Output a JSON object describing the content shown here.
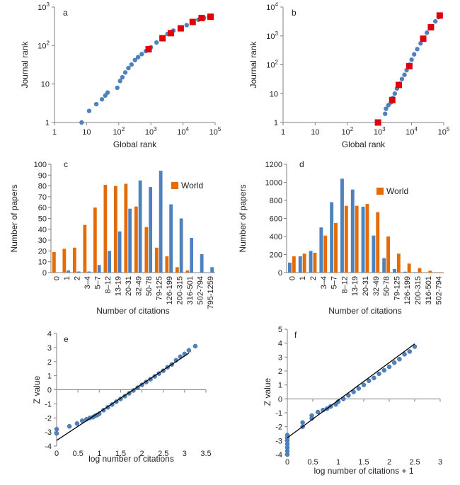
{
  "colors": {
    "blue": "#4f81bd",
    "orange": "#e36c09",
    "red": "#e0000c",
    "axis": "#808080",
    "fit_line": "#000000"
  },
  "chart_data": [
    {
      "panel": "a",
      "type": "scatter",
      "xlabel": "Global rank",
      "ylabel": "Journal rank",
      "x_scale": "log",
      "y_scale": "log",
      "xlim": [
        1,
        100000
      ],
      "ylim": [
        1,
        1000
      ],
      "x_ticks": [
        {
          "v": 1,
          "b": "1",
          "e": ""
        },
        {
          "v": 10,
          "b": "10",
          "e": ""
        },
        {
          "v": 100,
          "b": "10",
          "e": "2"
        },
        {
          "v": 1000,
          "b": "10",
          "e": "3"
        },
        {
          "v": 10000,
          "b": "10",
          "e": "4"
        },
        {
          "v": 100000,
          "b": "10",
          "e": "5"
        }
      ],
      "y_ticks": [
        {
          "v": 1,
          "b": "1",
          "e": ""
        },
        {
          "v": 10,
          "b": "10",
          "e": ""
        },
        {
          "v": 100,
          "b": "10",
          "e": "2"
        },
        {
          "v": 1000,
          "b": "10",
          "e": "3"
        }
      ],
      "series": [
        {
          "marker": "circle",
          "color": "#4f81bd",
          "points": [
            [
              7,
              1
            ],
            [
              12,
              2
            ],
            [
              20,
              3
            ],
            [
              30,
              4
            ],
            [
              38,
              5
            ],
            [
              45,
              6
            ],
            [
              90,
              8
            ],
            [
              110,
              12
            ],
            [
              130,
              15
            ],
            [
              160,
              20
            ],
            [
              200,
              26
            ],
            [
              250,
              32
            ],
            [
              320,
              42
            ],
            [
              400,
              50
            ],
            [
              520,
              60
            ],
            [
              700,
              72
            ],
            [
              1000,
              90
            ],
            [
              1500,
              120
            ],
            [
              2200,
              155
            ],
            [
              3300,
              200
            ],
            [
              5000,
              245
            ],
            [
              8000,
              290
            ],
            [
              13000,
              340
            ],
            [
              20000,
              400
            ],
            [
              30000,
              470
            ],
            [
              45000,
              520
            ],
            [
              65000,
              560
            ],
            [
              78000,
              570
            ]
          ]
        },
        {
          "marker": "square",
          "color": "#e0000c",
          "points": [
            [
              850,
              80
            ],
            [
              2300,
              155
            ],
            [
              4200,
              210
            ],
            [
              8500,
              280
            ],
            [
              20000,
              410
            ],
            [
              38000,
              520
            ],
            [
              72000,
              560
            ]
          ]
        }
      ]
    },
    {
      "panel": "b",
      "type": "scatter",
      "xlabel": "Global rank",
      "ylabel": "Journal rank",
      "x_scale": "log",
      "y_scale": "log",
      "xlim": [
        1,
        100000
      ],
      "ylim": [
        1,
        10000
      ],
      "x_ticks": [
        {
          "v": 1,
          "b": "1",
          "e": ""
        },
        {
          "v": 10,
          "b": "10",
          "e": ""
        },
        {
          "v": 100,
          "b": "10",
          "e": "2"
        },
        {
          "v": 1000,
          "b": "10",
          "e": "3"
        },
        {
          "v": 10000,
          "b": "10",
          "e": "4"
        },
        {
          "v": 100000,
          "b": "10",
          "e": "5"
        }
      ],
      "y_ticks": [
        {
          "v": 1,
          "b": "1",
          "e": ""
        },
        {
          "v": 10,
          "b": "10",
          "e": ""
        },
        {
          "v": 100,
          "b": "10",
          "e": "2"
        },
        {
          "v": 1000,
          "b": "10",
          "e": "3"
        },
        {
          "v": 10000,
          "b": "10",
          "e": "4"
        }
      ],
      "series": [
        {
          "marker": "circle",
          "color": "#4f81bd",
          "points": [
            [
              1500,
              2
            ],
            [
              1600,
              3
            ],
            [
              1900,
              4
            ],
            [
              2300,
              5
            ],
            [
              2600,
              7
            ],
            [
              3000,
              10
            ],
            [
              3500,
              15
            ],
            [
              4200,
              22
            ],
            [
              5000,
              32
            ],
            [
              6000,
              45
            ],
            [
              7000,
              65
            ],
            [
              8500,
              100
            ],
            [
              10000,
              150
            ],
            [
              12000,
              230
            ],
            [
              15000,
              350
            ],
            [
              19000,
              550
            ],
            [
              24000,
              850
            ],
            [
              30000,
              1300
            ],
            [
              40000,
              2000
            ],
            [
              55000,
              3200
            ],
            [
              70000,
              4500
            ],
            [
              80000,
              5300
            ]
          ]
        },
        {
          "marker": "square",
          "color": "#e0000c",
          "points": [
            [
              900,
              1
            ],
            [
              2500,
              6
            ],
            [
              4000,
              20
            ],
            [
              8500,
              90
            ],
            [
              23000,
              800
            ],
            [
              40000,
              2000
            ],
            [
              75000,
              5100
            ]
          ]
        }
      ]
    },
    {
      "panel": "c",
      "type": "bar",
      "xlabel": "Number of citations",
      "ylabel": "Number of papers",
      "ylim": [
        0,
        100
      ],
      "y_ticks": [
        0,
        10,
        20,
        30,
        40,
        50,
        60,
        70,
        80,
        90,
        100
      ],
      "legend": {
        "label": "World",
        "placement": "top-right"
      },
      "categories": [
        "0",
        "1",
        "2",
        "3–4",
        "5–7",
        "8–12",
        "13-19",
        "20-31",
        "32-49",
        "50-78",
        "79-125",
        "126-199",
        "200-315",
        "316-501",
        "502-794",
        "795-1259"
      ],
      "series": [
        {
          "name": "World",
          "color": "#e36c09",
          "values": [
            19,
            22,
            23,
            44,
            60,
            81,
            80,
            82,
            61,
            42,
            23,
            15,
            5,
            2,
            0,
            0
          ]
        },
        {
          "name": "",
          "color": "#4f81bd",
          "values": [
            0,
            2,
            1,
            1,
            7,
            20,
            38,
            59,
            85,
            79,
            94,
            63,
            50,
            32,
            17,
            5
          ]
        }
      ]
    },
    {
      "panel": "d",
      "type": "bar",
      "xlabel": "Number of citations",
      "ylabel": "Number of papers",
      "ylim": [
        0,
        1200
      ],
      "y_ticks": [
        0,
        200,
        400,
        600,
        800,
        1000,
        1200
      ],
      "legend": {
        "label": "World",
        "placement": "top-right"
      },
      "categories": [
        "0",
        "1",
        "2",
        "3–4",
        "5–7",
        "8–12",
        "13-19",
        "20-31",
        "32-49",
        "50-78",
        "79-125",
        "126-199",
        "200-315",
        "316-501",
        "502-794"
      ],
      "series": [
        {
          "name": "",
          "color": "#4f81bd",
          "values": [
            110,
            180,
            240,
            500,
            780,
            1040,
            920,
            730,
            410,
            160,
            40,
            10,
            5,
            0,
            0
          ]
        },
        {
          "name": "World",
          "color": "#e36c09",
          "values": [
            180,
            210,
            220,
            410,
            550,
            740,
            740,
            760,
            670,
            400,
            210,
            100,
            50,
            20,
            5
          ]
        }
      ]
    },
    {
      "panel": "e",
      "type": "scatter",
      "xlabel": "log number of citations",
      "ylabel": "Z value",
      "xlim": [
        0,
        3.5
      ],
      "ylim": [
        -4,
        4
      ],
      "x_ticks": [
        0,
        0.5,
        1,
        1.5,
        2,
        2.5,
        3,
        3.5
      ],
      "y_ticks": [
        -4,
        -3,
        -2,
        -1,
        0,
        1,
        2,
        3,
        4
      ],
      "fit_line": [
        [
          0,
          -3.6
        ],
        [
          3.1,
          2.6
        ]
      ],
      "series": [
        {
          "marker": "circle",
          "color": "#4f81bd",
          "points": [
            [
              0,
              -3.1
            ],
            [
              0,
              -2.8
            ],
            [
              0.3,
              -2.6
            ],
            [
              0.48,
              -2.4
            ],
            [
              0.6,
              -2.2
            ],
            [
              0.7,
              -2.1
            ],
            [
              0.78,
              -2.0
            ],
            [
              0.85,
              -1.95
            ],
            [
              0.9,
              -1.85
            ],
            [
              0.95,
              -1.8
            ],
            [
              1.0,
              -1.7
            ],
            [
              1.1,
              -1.45
            ],
            [
              1.2,
              -1.25
            ],
            [
              1.3,
              -1.05
            ],
            [
              1.4,
              -0.85
            ],
            [
              1.5,
              -0.65
            ],
            [
              1.6,
              -0.45
            ],
            [
              1.7,
              -0.25
            ],
            [
              1.8,
              -0.05
            ],
            [
              1.9,
              0.15
            ],
            [
              2.0,
              0.35
            ],
            [
              2.1,
              0.55
            ],
            [
              2.2,
              0.75
            ],
            [
              2.3,
              0.95
            ],
            [
              2.4,
              1.15
            ],
            [
              2.5,
              1.35
            ],
            [
              2.6,
              1.6
            ],
            [
              2.7,
              1.8
            ],
            [
              2.8,
              2.1
            ],
            [
              2.9,
              2.35
            ],
            [
              3.0,
              2.55
            ],
            [
              3.1,
              2.8
            ],
            [
              3.25,
              3.1
            ]
          ]
        }
      ]
    },
    {
      "panel": "f",
      "type": "scatter",
      "xlabel": "log number of citations + 1",
      "ylabel": "Z value",
      "xlim": [
        0,
        3
      ],
      "ylim": [
        -4,
        5
      ],
      "x_ticks": [
        0,
        0.5,
        1,
        1.5,
        2,
        2.5,
        3
      ],
      "y_ticks": [
        -4,
        -3,
        -2,
        -1,
        0,
        1,
        2,
        3,
        4,
        5
      ],
      "fit_line": [
        [
          0,
          -2.8
        ],
        [
          2.5,
          3.95
        ]
      ],
      "series": [
        {
          "marker": "circle",
          "color": "#4f81bd",
          "points": [
            [
              0,
              -4.0
            ],
            [
              0,
              -3.75
            ],
            [
              0,
              -3.5
            ],
            [
              0,
              -3.25
            ],
            [
              0,
              -3.0
            ],
            [
              0,
              -2.8
            ],
            [
              0,
              -2.6
            ],
            [
              0.3,
              -2.0
            ],
            [
              0.3,
              -1.7
            ],
            [
              0.48,
              -1.4
            ],
            [
              0.48,
              -1.2
            ],
            [
              0.6,
              -0.95
            ],
            [
              0.7,
              -0.8
            ],
            [
              0.78,
              -0.7
            ],
            [
              0.85,
              -0.55
            ],
            [
              0.95,
              -0.4
            ],
            [
              1.0,
              -0.2
            ],
            [
              1.1,
              0.0
            ],
            [
              1.2,
              0.25
            ],
            [
              1.3,
              0.5
            ],
            [
              1.4,
              0.75
            ],
            [
              1.5,
              1.0
            ],
            [
              1.6,
              1.3
            ],
            [
              1.7,
              1.5
            ],
            [
              1.8,
              1.8
            ],
            [
              1.9,
              2.05
            ],
            [
              2.0,
              2.3
            ],
            [
              2.1,
              2.6
            ],
            [
              2.2,
              2.85
            ],
            [
              2.3,
              3.2
            ],
            [
              2.4,
              3.4
            ],
            [
              2.5,
              3.75
            ]
          ]
        }
      ]
    }
  ]
}
